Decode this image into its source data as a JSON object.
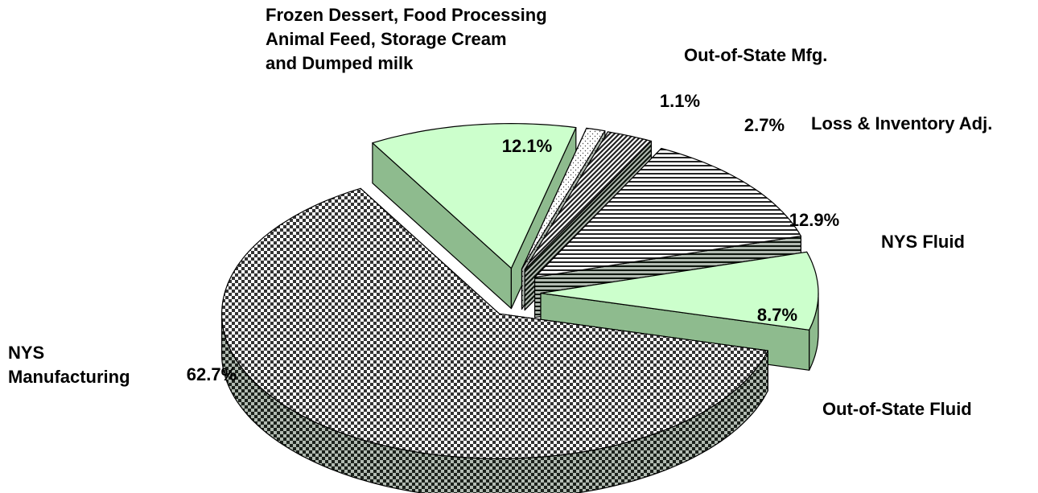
{
  "chart_data": {
    "type": "pie3d",
    "categories": [
      "Frozen Dessert, Food Processing\nAnimal Feed, Storage Cream\nand Dumped milk",
      "Out-of-State Mfg.",
      "Loss & Inventory Adj.",
      "NYS Fluid",
      "Out-of-State Fluid",
      "NYS\nManufacturing"
    ],
    "values": [
      12.1,
      1.1,
      2.7,
      12.9,
      8.7,
      62.7
    ],
    "value_labels": [
      "12.1%",
      "1.1%",
      "2.7%",
      "12.9%",
      "8.7%",
      "62.7%"
    ],
    "colors": [
      "#ccffcc",
      "#ffffff",
      "#ffffff",
      "#ffffff",
      "#ccffcc",
      "#ffffff"
    ],
    "startangle": -30
  }
}
